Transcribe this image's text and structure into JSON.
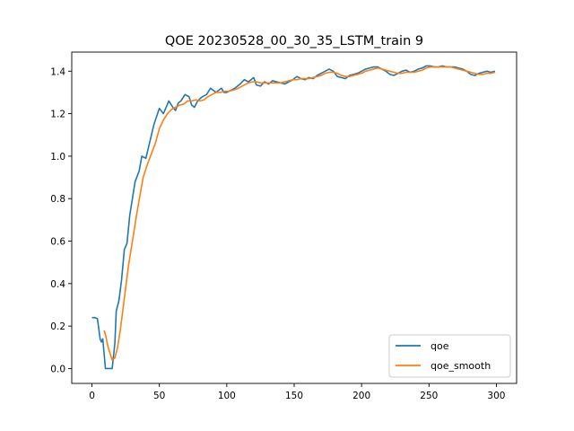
{
  "chart_data": {
    "type": "line",
    "title": "QOE 20230528_00_30_35_LSTM_train 9",
    "xlabel": "",
    "ylabel": "",
    "xlim": [
      -15,
      315
    ],
    "ylim": [
      -0.07,
      1.49
    ],
    "xticks": [
      0,
      50,
      100,
      150,
      200,
      250,
      300
    ],
    "yticks": [
      0.0,
      0.2,
      0.4,
      0.6,
      0.8,
      1.0,
      1.2,
      1.4
    ],
    "xtick_labels": [
      "0",
      "50",
      "100",
      "150",
      "200",
      "250",
      "300"
    ],
    "ytick_labels": [
      "0.0",
      "0.2",
      "0.4",
      "0.6",
      "0.8",
      "1.0",
      "1.2",
      "1.4"
    ],
    "grid": false,
    "legend_position": "lower-right",
    "series": [
      {
        "name": "qoe",
        "color": "#1f77b4",
        "points": [
          [
            0,
            0.24
          ],
          [
            2,
            0.24
          ],
          [
            4,
            0.235
          ],
          [
            5,
            0.19
          ],
          [
            6,
            0.14
          ],
          [
            7,
            0.125
          ],
          [
            8,
            0.14
          ],
          [
            10,
            0.0
          ],
          [
            12,
            0.0
          ],
          [
            15,
            0.0
          ],
          [
            17,
            0.12
          ],
          [
            18,
            0.27
          ],
          [
            20,
            0.32
          ],
          [
            22,
            0.42
          ],
          [
            24,
            0.56
          ],
          [
            26,
            0.59
          ],
          [
            28,
            0.72
          ],
          [
            30,
            0.8
          ],
          [
            32,
            0.88
          ],
          [
            35,
            0.93
          ],
          [
            37,
            1.0
          ],
          [
            40,
            0.99
          ],
          [
            43,
            1.07
          ],
          [
            46,
            1.15
          ],
          [
            50,
            1.225
          ],
          [
            53,
            1.2
          ],
          [
            55,
            1.23
          ],
          [
            57,
            1.26
          ],
          [
            60,
            1.23
          ],
          [
            62,
            1.215
          ],
          [
            64,
            1.25
          ],
          [
            66,
            1.26
          ],
          [
            69,
            1.29
          ],
          [
            72,
            1.28
          ],
          [
            74,
            1.24
          ],
          [
            76,
            1.23
          ],
          [
            78,
            1.255
          ],
          [
            80,
            1.27
          ],
          [
            82,
            1.28
          ],
          [
            85,
            1.29
          ],
          [
            88,
            1.32
          ],
          [
            90,
            1.31
          ],
          [
            92,
            1.3
          ],
          [
            94,
            1.31
          ],
          [
            96,
            1.32
          ],
          [
            98,
            1.3
          ],
          [
            100,
            1.3
          ],
          [
            103,
            1.31
          ],
          [
            106,
            1.32
          ],
          [
            108,
            1.33
          ],
          [
            110,
            1.34
          ],
          [
            113,
            1.36
          ],
          [
            116,
            1.35
          ],
          [
            118,
            1.36
          ],
          [
            120,
            1.37
          ],
          [
            122,
            1.335
          ],
          [
            125,
            1.33
          ],
          [
            128,
            1.35
          ],
          [
            131,
            1.34
          ],
          [
            134,
            1.355
          ],
          [
            137,
            1.35
          ],
          [
            140,
            1.345
          ],
          [
            143,
            1.34
          ],
          [
            146,
            1.35
          ],
          [
            149,
            1.36
          ],
          [
            152,
            1.375
          ],
          [
            155,
            1.365
          ],
          [
            158,
            1.36
          ],
          [
            161,
            1.37
          ],
          [
            164,
            1.365
          ],
          [
            167,
            1.38
          ],
          [
            170,
            1.39
          ],
          [
            173,
            1.4
          ],
          [
            176,
            1.41
          ],
          [
            179,
            1.4
          ],
          [
            182,
            1.375
          ],
          [
            185,
            1.37
          ],
          [
            188,
            1.365
          ],
          [
            191,
            1.38
          ],
          [
            194,
            1.385
          ],
          [
            197,
            1.39
          ],
          [
            200,
            1.4
          ],
          [
            203,
            1.41
          ],
          [
            206,
            1.415
          ],
          [
            209,
            1.42
          ],
          [
            212,
            1.42
          ],
          [
            215,
            1.41
          ],
          [
            218,
            1.4
          ],
          [
            221,
            1.385
          ],
          [
            224,
            1.38
          ],
          [
            227,
            1.39
          ],
          [
            230,
            1.4
          ],
          [
            233,
            1.405
          ],
          [
            236,
            1.395
          ],
          [
            239,
            1.4
          ],
          [
            242,
            1.41
          ],
          [
            245,
            1.415
          ],
          [
            248,
            1.425
          ],
          [
            251,
            1.425
          ],
          [
            254,
            1.42
          ],
          [
            257,
            1.42
          ],
          [
            260,
            1.425
          ],
          [
            263,
            1.42
          ],
          [
            266,
            1.42
          ],
          [
            269,
            1.42
          ],
          [
            272,
            1.415
          ],
          [
            275,
            1.41
          ],
          [
            278,
            1.4
          ],
          [
            281,
            1.385
          ],
          [
            284,
            1.38
          ],
          [
            287,
            1.39
          ],
          [
            290,
            1.395
          ],
          [
            293,
            1.4
          ],
          [
            296,
            1.395
          ],
          [
            299,
            1.4
          ]
        ]
      },
      {
        "name": "qoe_smooth",
        "color": "#ff7f0e",
        "points": [
          [
            9,
            0.18
          ],
          [
            10,
            0.16
          ],
          [
            12,
            0.1
          ],
          [
            14,
            0.06
          ],
          [
            15,
            0.04
          ],
          [
            17,
            0.05
          ],
          [
            19,
            0.1
          ],
          [
            21,
            0.18
          ],
          [
            23,
            0.28
          ],
          [
            25,
            0.38
          ],
          [
            27,
            0.48
          ],
          [
            30,
            0.6
          ],
          [
            33,
            0.72
          ],
          [
            36,
            0.83
          ],
          [
            38,
            0.9
          ],
          [
            41,
            0.96
          ],
          [
            44,
            1.01
          ],
          [
            47,
            1.06
          ],
          [
            50,
            1.13
          ],
          [
            53,
            1.17
          ],
          [
            56,
            1.2
          ],
          [
            59,
            1.22
          ],
          [
            62,
            1.23
          ],
          [
            65,
            1.24
          ],
          [
            68,
            1.245
          ],
          [
            71,
            1.26
          ],
          [
            74,
            1.26
          ],
          [
            77,
            1.265
          ],
          [
            80,
            1.26
          ],
          [
            83,
            1.265
          ],
          [
            86,
            1.28
          ],
          [
            89,
            1.29
          ],
          [
            92,
            1.3
          ],
          [
            95,
            1.3
          ],
          [
            98,
            1.305
          ],
          [
            101,
            1.305
          ],
          [
            104,
            1.31
          ],
          [
            107,
            1.315
          ],
          [
            110,
            1.325
          ],
          [
            113,
            1.335
          ],
          [
            116,
            1.345
          ],
          [
            119,
            1.35
          ],
          [
            122,
            1.35
          ],
          [
            125,
            1.345
          ],
          [
            128,
            1.345
          ],
          [
            131,
            1.345
          ],
          [
            134,
            1.345
          ],
          [
            137,
            1.345
          ],
          [
            140,
            1.345
          ],
          [
            143,
            1.35
          ],
          [
            146,
            1.355
          ],
          [
            149,
            1.36
          ],
          [
            152,
            1.36
          ],
          [
            155,
            1.365
          ],
          [
            158,
            1.365
          ],
          [
            161,
            1.365
          ],
          [
            164,
            1.37
          ],
          [
            167,
            1.375
          ],
          [
            170,
            1.38
          ],
          [
            173,
            1.39
          ],
          [
            176,
            1.395
          ],
          [
            179,
            1.395
          ],
          [
            182,
            1.39
          ],
          [
            185,
            1.38
          ],
          [
            188,
            1.375
          ],
          [
            191,
            1.375
          ],
          [
            194,
            1.38
          ],
          [
            197,
            1.385
          ],
          [
            200,
            1.39
          ],
          [
            203,
            1.4
          ],
          [
            206,
            1.405
          ],
          [
            209,
            1.41
          ],
          [
            212,
            1.415
          ],
          [
            215,
            1.41
          ],
          [
            218,
            1.405
          ],
          [
            221,
            1.4
          ],
          [
            224,
            1.395
          ],
          [
            227,
            1.39
          ],
          [
            230,
            1.39
          ],
          [
            233,
            1.395
          ],
          [
            236,
            1.395
          ],
          [
            239,
            1.395
          ],
          [
            242,
            1.4
          ],
          [
            245,
            1.405
          ],
          [
            248,
            1.415
          ],
          [
            251,
            1.42
          ],
          [
            254,
            1.42
          ],
          [
            257,
            1.42
          ],
          [
            260,
            1.42
          ],
          [
            263,
            1.42
          ],
          [
            266,
            1.42
          ],
          [
            269,
            1.415
          ],
          [
            272,
            1.41
          ],
          [
            275,
            1.405
          ],
          [
            278,
            1.4
          ],
          [
            281,
            1.395
          ],
          [
            284,
            1.39
          ],
          [
            287,
            1.385
          ],
          [
            290,
            1.385
          ],
          [
            293,
            1.39
          ],
          [
            296,
            1.39
          ],
          [
            299,
            1.395
          ]
        ]
      }
    ]
  }
}
